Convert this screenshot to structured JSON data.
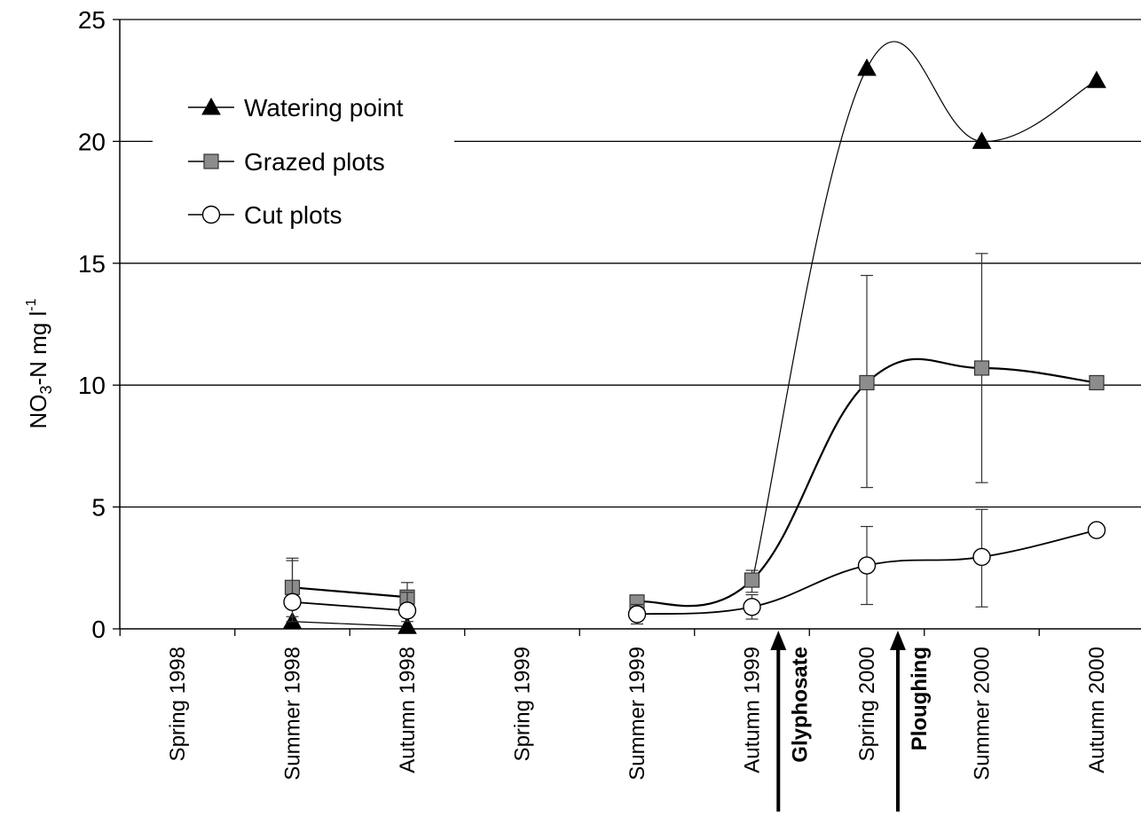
{
  "chart_data": {
    "type": "line",
    "title": "",
    "xlabel": "",
    "ylabel": "NO",
    "ylabel_sub": "3",
    "ylabel_rest": "-N mg l",
    "ylabel_sup": "-1",
    "categories": [
      "Spring 1998",
      "Summer 1998",
      "Autumn 1998",
      "Spring 1999",
      "Summer 1999",
      "Autumn 1999",
      "Spring 2000",
      "Summer 2000",
      "Autumn 2000"
    ],
    "ylim": [
      0,
      25
    ],
    "yticks": [
      "0",
      "5",
      "10",
      "15",
      "20",
      "25"
    ],
    "grid": "horizontal",
    "legend_position": "top-left",
    "series": [
      {
        "name": "Watering point",
        "marker": "triangle",
        "segments": [
          [
            {
              "x": "Summer 1998",
              "y": 0.3
            },
            {
              "x": "Autumn 1998",
              "y": 0.1
            }
          ],
          [
            {
              "x": "Autumn 1999",
              "y": 1.9
            },
            {
              "x": "Spring 2000",
              "y": 23.0
            },
            {
              "x": "Summer 2000",
              "y": 20.0
            },
            {
              "x": "Autumn 2000",
              "y": 22.5
            }
          ]
        ],
        "errors": []
      },
      {
        "name": "Grazed plots",
        "marker": "square",
        "segments": [
          [
            {
              "x": "Summer 1998",
              "y": 1.7
            },
            {
              "x": "Autumn 1998",
              "y": 1.3
            }
          ],
          [
            {
              "x": "Summer 1999",
              "y": 1.1
            },
            {
              "x": "Autumn 1999",
              "y": 2.0
            },
            {
              "x": "Spring 2000",
              "y": 10.1
            },
            {
              "x": "Summer 2000",
              "y": 10.7
            },
            {
              "x": "Autumn 2000",
              "y": 10.1
            }
          ]
        ],
        "errors": [
          {
            "x": "Summer 1998",
            "low": 0.5,
            "high": 2.9
          },
          {
            "x": "Autumn 1998",
            "low": 0.7,
            "high": 1.9
          },
          {
            "x": "Autumn 1999",
            "low": 1.5,
            "high": 2.4
          },
          {
            "x": "Spring 2000",
            "low": 5.8,
            "high": 14.5
          },
          {
            "x": "Summer 2000",
            "low": 6.0,
            "high": 15.4
          }
        ]
      },
      {
        "name": "Cut plots",
        "marker": "circle",
        "segments": [
          [
            {
              "x": "Summer 1998",
              "y": 1.1
            },
            {
              "x": "Autumn 1998",
              "y": 0.75
            }
          ],
          [
            {
              "x": "Summer 1999",
              "y": 0.6
            },
            {
              "x": "Autumn 1999",
              "y": 0.9
            },
            {
              "x": "Spring 2000",
              "y": 2.6
            },
            {
              "x": "Summer 2000",
              "y": 2.95
            },
            {
              "x": "Autumn 2000",
              "y": 4.05
            }
          ]
        ],
        "errors": [
          {
            "x": "Summer 1998",
            "low": 0.3,
            "high": 2.8
          },
          {
            "x": "Autumn 1998",
            "low": 0.3,
            "high": 1.5
          },
          {
            "x": "Summer 1999",
            "low": 0.2,
            "high": 1.0
          },
          {
            "x": "Autumn 1999",
            "low": 0.4,
            "high": 1.4
          },
          {
            "x": "Spring 2000",
            "low": 1.0,
            "high": 4.2
          },
          {
            "x": "Summer 2000",
            "low": 0.9,
            "high": 4.9
          }
        ]
      }
    ],
    "annotations": [
      {
        "label": "Glyphosate",
        "x_between": [
          "Autumn 1999",
          "Spring 2000"
        ],
        "position": 0.23
      },
      {
        "label": "Ploughing",
        "x_between": [
          "Spring 2000",
          "Summer 2000"
        ],
        "position": 0.27
      }
    ]
  }
}
